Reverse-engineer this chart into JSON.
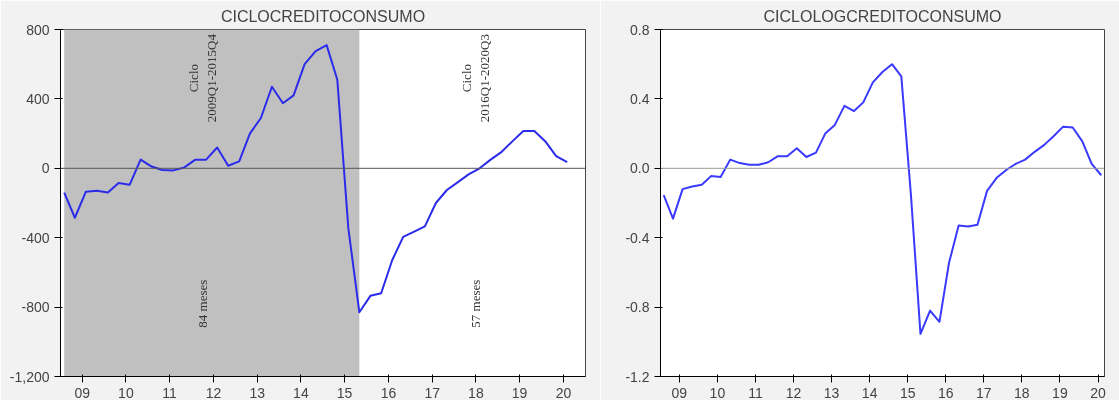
{
  "chart_data": [
    {
      "type": "line",
      "title": "CICLOCREDITOCONSUMO",
      "x": [
        "2009-02",
        "2009-05",
        "2009-08",
        "2009-11",
        "2010-02",
        "2010-05",
        "2010-08",
        "2010-11",
        "2011-02",
        "2011-05",
        "2011-08",
        "2011-11",
        "2012-02",
        "2012-05",
        "2012-08",
        "2012-11",
        "2013-02",
        "2013-05",
        "2013-08",
        "2013-11",
        "2014-02",
        "2014-05",
        "2014-08",
        "2014-11",
        "2015-02",
        "2015-05",
        "2015-08",
        "2015-11",
        "2016-02",
        "2016-05",
        "2016-08",
        "2016-11",
        "2017-02",
        "2017-05",
        "2017-08",
        "2017-11",
        "2018-02",
        "2018-05",
        "2018-08",
        "2018-11",
        "2019-02",
        "2019-05",
        "2019-08",
        "2019-11",
        "2020-02",
        "2020-05",
        "2020-08"
      ],
      "series": [
        {
          "color": "#2b2bea",
          "values": [
            -140,
            -285,
            -135,
            -130,
            -140,
            -85,
            -95,
            50,
            10,
            -10,
            -12,
            5,
            50,
            50,
            120,
            15,
            40,
            200,
            290,
            470,
            375,
            420,
            600,
            675,
            710,
            510,
            -345,
            -830,
            -735,
            -720,
            -530,
            -395,
            -365,
            -335,
            -200,
            -125,
            -80,
            -35,
            0,
            50,
            95,
            155,
            215,
            215,
            155,
            70,
            35
          ]
        }
      ],
      "xlim": [
        "2009-01",
        "2021-01"
      ],
      "xticks": [
        {
          "value": "2009-07",
          "label": "09"
        },
        {
          "value": "2010-07",
          "label": "10"
        },
        {
          "value": "2011-07",
          "label": "11"
        },
        {
          "value": "2012-07",
          "label": "12"
        },
        {
          "value": "2013-07",
          "label": "13"
        },
        {
          "value": "2014-07",
          "label": "14"
        },
        {
          "value": "2015-07",
          "label": "15"
        },
        {
          "value": "2016-07",
          "label": "16"
        },
        {
          "value": "2017-07",
          "label": "17"
        },
        {
          "value": "2018-07",
          "label": "18"
        },
        {
          "value": "2019-07",
          "label": "19"
        },
        {
          "value": "2020-07",
          "label": "20"
        }
      ],
      "ylim": [
        -1200,
        800
      ],
      "yticks": [
        800,
        400,
        0,
        -400,
        -800,
        {
          "value": -1200,
          "label": "-1,200"
        }
      ],
      "ref_lines": [
        {
          "axis": "y",
          "value": 0,
          "color": "#555555"
        }
      ],
      "bands": [
        {
          "axis": "x",
          "from": "2009-02",
          "to": "2015-11",
          "color": "#c0c0c0"
        }
      ],
      "annotations": [
        "Ciclo\n2009Q1-2015Q4",
        "84 meses",
        "Ciclo\n2016Q1-2020Q3",
        "57 meses"
      ],
      "grid": false
    },
    {
      "type": "line",
      "title": "CICLOLOGCREDITOCONSUMO",
      "x": [
        "2009-02",
        "2009-05",
        "2009-08",
        "2009-11",
        "2010-02",
        "2010-05",
        "2010-08",
        "2010-11",
        "2011-02",
        "2011-05",
        "2011-08",
        "2011-11",
        "2012-02",
        "2012-05",
        "2012-08",
        "2012-11",
        "2013-02",
        "2013-05",
        "2013-08",
        "2013-11",
        "2014-02",
        "2014-05",
        "2014-08",
        "2014-11",
        "2015-02",
        "2015-05",
        "2015-08",
        "2015-11",
        "2016-02",
        "2016-05",
        "2016-08",
        "2016-11",
        "2017-02",
        "2017-05",
        "2017-08",
        "2017-11",
        "2018-02",
        "2018-05",
        "2018-08",
        "2018-11",
        "2019-02",
        "2019-05",
        "2019-08",
        "2019-11",
        "2020-02",
        "2020-05",
        "2020-08"
      ],
      "series": [
        {
          "color": "#3a3aff",
          "values": [
            -0.155,
            -0.29,
            -0.12,
            -0.105,
            -0.095,
            -0.045,
            -0.05,
            0.05,
            0.03,
            0.02,
            0.02,
            0.035,
            0.07,
            0.07,
            0.115,
            0.065,
            0.09,
            0.2,
            0.25,
            0.36,
            0.33,
            0.38,
            0.495,
            0.555,
            0.6,
            0.53,
            -0.15,
            -0.955,
            -0.82,
            -0.885,
            -0.545,
            -0.33,
            -0.335,
            -0.325,
            -0.13,
            -0.055,
            -0.01,
            0.025,
            0.05,
            0.095,
            0.135,
            0.185,
            0.24,
            0.235,
            0.155,
            0.025,
            -0.04
          ]
        }
      ],
      "xlim": [
        "2009-01",
        "2020-09"
      ],
      "xticks": [
        {
          "value": "2009-07",
          "label": "09"
        },
        {
          "value": "2010-07",
          "label": "10"
        },
        {
          "value": "2011-07",
          "label": "11"
        },
        {
          "value": "2012-07",
          "label": "12"
        },
        {
          "value": "2013-07",
          "label": "13"
        },
        {
          "value": "2014-07",
          "label": "14"
        },
        {
          "value": "2015-07",
          "label": "15"
        },
        {
          "value": "2016-07",
          "label": "16"
        },
        {
          "value": "2017-07",
          "label": "17"
        },
        {
          "value": "2018-07",
          "label": "18"
        },
        {
          "value": "2019-07",
          "label": "19"
        },
        {
          "value": "2020-07",
          "label": "20"
        }
      ],
      "ylim": [
        -1.2,
        0.8
      ],
      "yticks": [
        0.8,
        0.4,
        {
          "value": 0,
          "label": "0.0"
        },
        -0.4,
        -0.8,
        -1.2
      ],
      "ref_lines": [
        {
          "axis": "y",
          "value": 0,
          "color": "#999999"
        }
      ],
      "grid": false
    }
  ]
}
